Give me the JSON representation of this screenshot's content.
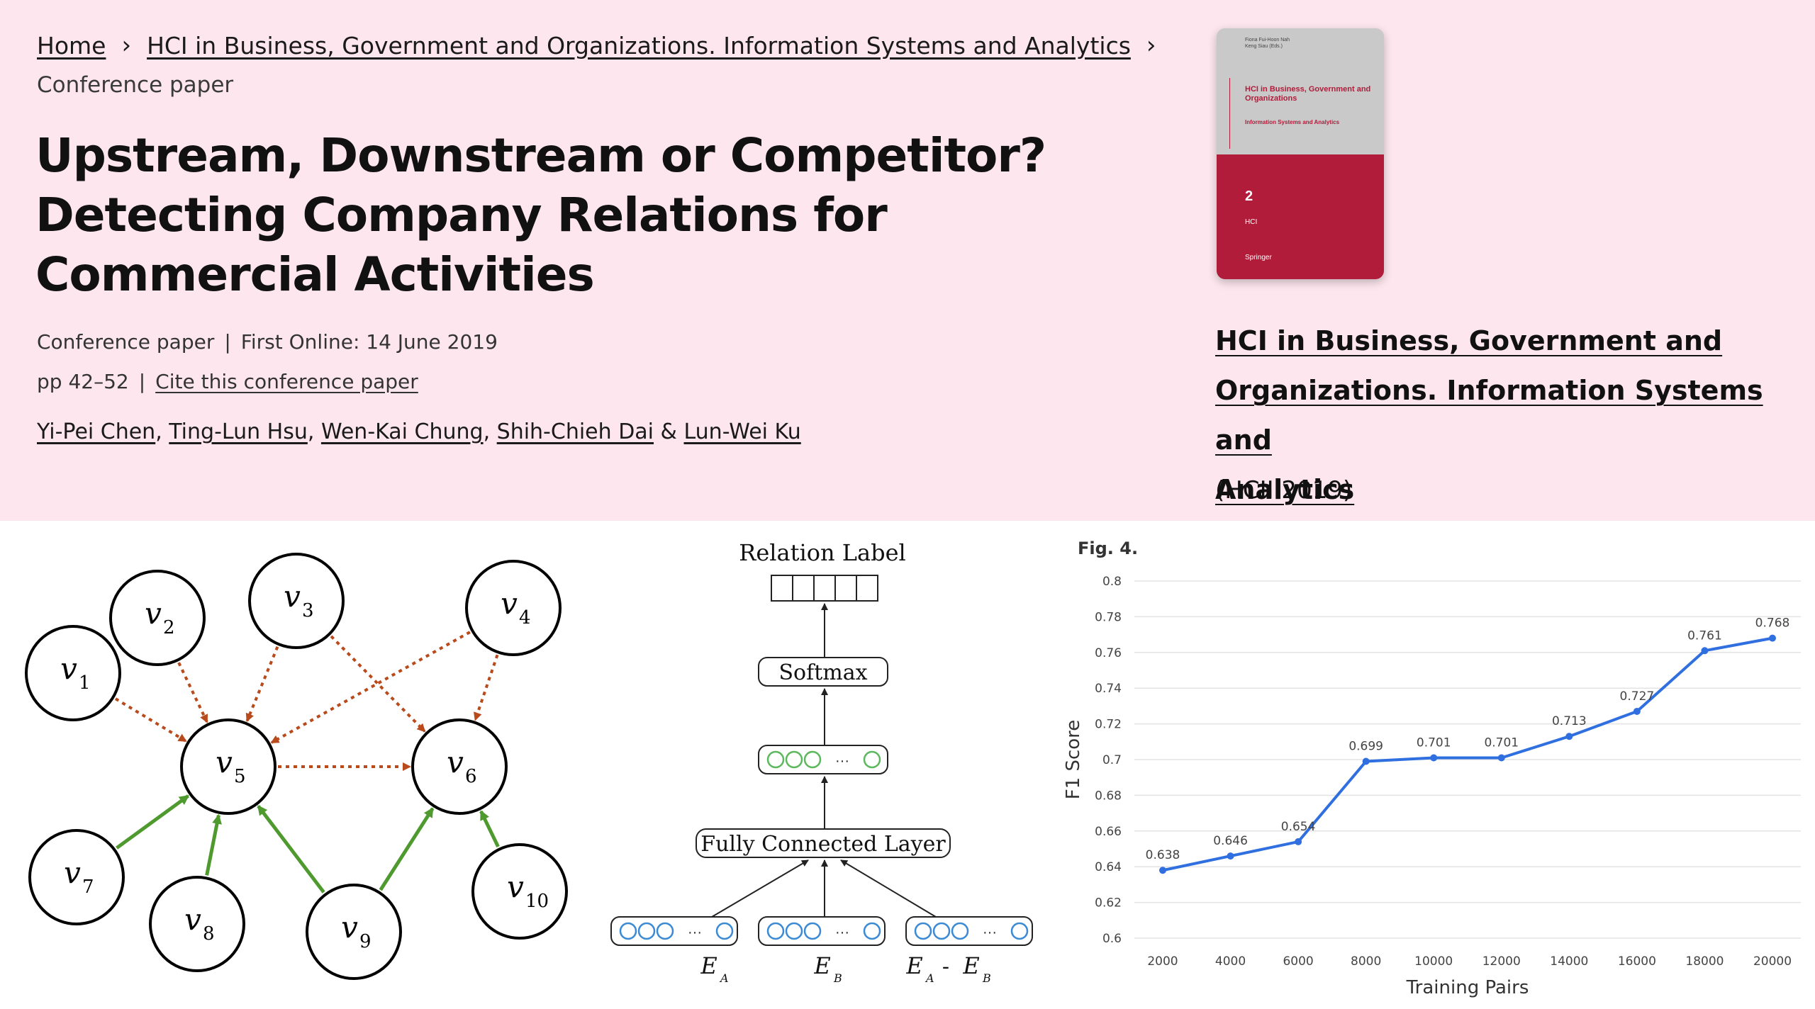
{
  "breadcrumb": {
    "home": "Home",
    "series": "HCI in Business, Government and Organizations. Information Systems and Analytics",
    "separator": "›"
  },
  "content_type": "Conference paper",
  "title": "Upstream, Downstream or Competitor? Detecting Company Relations for Commercial Activities",
  "meta": {
    "type": "Conference paper",
    "first_online": "First Online: 14 June 2019",
    "pages": "pp 42–52",
    "cite": "Cite this conference paper",
    "pipe": "|"
  },
  "authors": [
    "Yi-Pei Chen",
    "Ting-Lun Hsu",
    "Wen-Kai Chung",
    "Shih-Chieh Dai",
    "Lun-Wei Ku"
  ],
  "authors_sep": ", ",
  "authors_last_sep": " & ",
  "book": {
    "title_lines": [
      "HCI in Business, Government and",
      "Organizations. Information Systems and",
      "Analytics"
    ],
    "acronym": "(HCII 2019)",
    "cover": {
      "editors": "Fiona Fui-Hoon Nah\nKeng Siau (Eds.)",
      "title": "HCI in Business, Government and Organizations",
      "subtitle": "Information Systems and Analytics",
      "number": "2",
      "logo": "HCI",
      "publisher": "Springer"
    }
  },
  "graph_diagram": {
    "nodes": [
      {
        "id": "v1",
        "base": "v",
        "sub": "1"
      },
      {
        "id": "v2",
        "base": "v",
        "sub": "2"
      },
      {
        "id": "v3",
        "base": "v",
        "sub": "3"
      },
      {
        "id": "v4",
        "base": "v",
        "sub": "4"
      },
      {
        "id": "v5",
        "base": "v",
        "sub": "5"
      },
      {
        "id": "v6",
        "base": "v",
        "sub": "6"
      },
      {
        "id": "v7",
        "base": "v",
        "sub": "7"
      },
      {
        "id": "v8",
        "base": "v",
        "sub": "8"
      },
      {
        "id": "v9",
        "base": "v",
        "sub": "9"
      },
      {
        "id": "v10",
        "base": "v",
        "sub": "10"
      }
    ],
    "dotted_edges": [
      [
        "v1",
        "v5"
      ],
      [
        "v2",
        "v5"
      ],
      [
        "v3",
        "v5"
      ],
      [
        "v3",
        "v6"
      ],
      [
        "v4",
        "v5"
      ],
      [
        "v4",
        "v6"
      ],
      [
        "v5",
        "v6"
      ]
    ],
    "solid_edges": [
      [
        "v7",
        "v5"
      ],
      [
        "v8",
        "v5"
      ],
      [
        "v9",
        "v5"
      ],
      [
        "v9",
        "v6"
      ],
      [
        "v10",
        "v6"
      ]
    ],
    "colors": {
      "dotted": "#b84a1c",
      "solid": "#4e9a2e"
    }
  },
  "nn_diagram": {
    "output_label": "Relation Label",
    "softmax": "Softmax",
    "fc_layer": "Fully Connected Layer",
    "ellipsis": "···",
    "inputs": [
      {
        "main": "E",
        "sub": "A"
      },
      {
        "main": "E",
        "sub": "B"
      },
      {
        "main": "E",
        "sub": "A",
        "mid": " - ",
        "main2": "E",
        "sub2": "B"
      }
    ],
    "colors": {
      "hidden": "#5cb85c",
      "input": "#3a8ad6"
    }
  },
  "chart_data": {
    "type": "line",
    "figure_label": "Fig. 4.",
    "xlabel": "Training Pairs",
    "ylabel": "F1 Score",
    "x": [
      2000,
      4000,
      6000,
      8000,
      10000,
      12000,
      14000,
      16000,
      18000,
      20000
    ],
    "y": [
      0.638,
      0.646,
      0.654,
      0.699,
      0.701,
      0.701,
      0.713,
      0.727,
      0.761,
      0.768
    ],
    "data_labels": [
      "0.638",
      "0.646",
      "0.654",
      "0.699",
      "0.701",
      "0.701",
      "0.713",
      "0.727",
      "0.761",
      "0.768"
    ],
    "ylim": [
      0.6,
      0.8
    ],
    "yticks": [
      "0.6",
      "0.62",
      "0.64",
      "0.66",
      "0.68",
      "0.7",
      "0.72",
      "0.74",
      "0.76",
      "0.78",
      "0.8"
    ],
    "xticks": [
      "2000",
      "4000",
      "6000",
      "8000",
      "10000",
      "12000",
      "14000",
      "16000",
      "18000",
      "20000"
    ],
    "grid": true,
    "line_color": "#2f6fe0"
  }
}
